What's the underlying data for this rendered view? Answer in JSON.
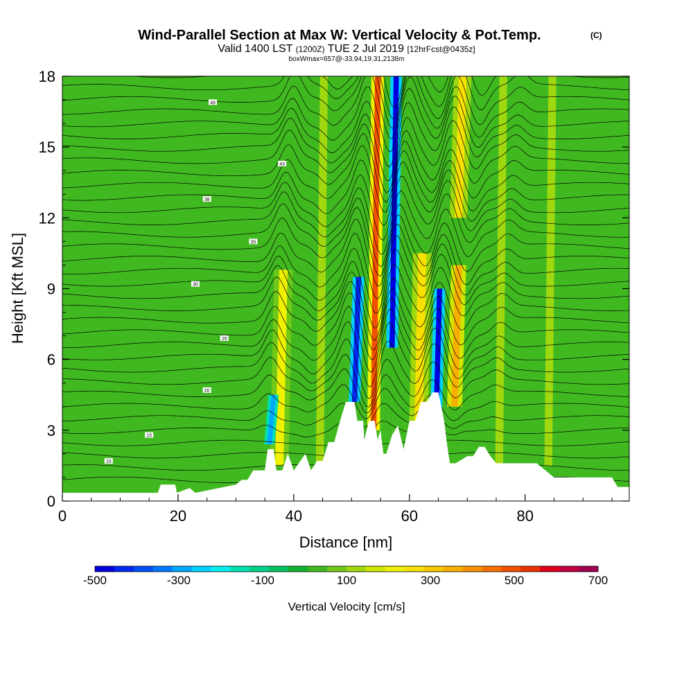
{
  "header": {
    "title": "Wind-Parallel Section at Max W: Vertical Velocity & Pot.Temp.",
    "copyright": "(C)",
    "valid_prefix": "Valid 1400 LST",
    "utc": "(1200Z)",
    "valid_date": "TUE 2 Jul 2019",
    "forecast": "[12hrFcst@0435z]",
    "box_info": "boxWmax=657@-33.94,19.31,2138m"
  },
  "chart_data": {
    "type": "heatmap",
    "xlabel": "Distance [nm]",
    "ylabel": "Height [Kft MSL]",
    "xlim": [
      0,
      98
    ],
    "ylim": [
      0,
      18
    ],
    "x_ticks": [
      0,
      20,
      40,
      60,
      80
    ],
    "y_ticks": [
      0,
      3,
      6,
      9,
      12,
      15,
      18
    ],
    "grid": false,
    "colorbar": {
      "label": "Vertical Velocity [cm/s]",
      "min": -500,
      "max": 700,
      "step": 50,
      "tick_labels": [
        -500,
        -300,
        -100,
        100,
        300,
        500,
        700
      ],
      "colors": [
        "#0000e0",
        "#0028f0",
        "#0050f5",
        "#0078ff",
        "#00a8ff",
        "#00d0ff",
        "#00f0f0",
        "#00e0b0",
        "#00d088",
        "#00c060",
        "#10b030",
        "#40b820",
        "#70c818",
        "#a0d810",
        "#d0e800",
        "#f0f000",
        "#f8e000",
        "#f8c800",
        "#f8b000",
        "#f89000",
        "#f87000",
        "#f05000",
        "#e83000",
        "#e00018",
        "#c00040",
        "#a00050"
      ]
    },
    "velocity_bands": [
      {
        "x": 37.5,
        "width": 1.6,
        "value": 250,
        "zmin": 1.5,
        "zmax": 9.8
      },
      {
        "x": 35.8,
        "width": 0.9,
        "value": -280,
        "zmin": 2.4,
        "zmax": 4.5
      },
      {
        "x": 44.5,
        "width": 1.5,
        "value": 170,
        "zmin": 1.5,
        "zmax": 18
      },
      {
        "x": 50.5,
        "width": 1.0,
        "value": -420,
        "zmin": 4.2,
        "zmax": 9.5
      },
      {
        "x": 53.8,
        "width": 1.1,
        "value": 550,
        "zmin": 3.0,
        "zmax": 18
      },
      {
        "x": 57.0,
        "width": 1.0,
        "value": -480,
        "zmin": 6.5,
        "zmax": 18
      },
      {
        "x": 61.5,
        "width": 1.6,
        "value": 300,
        "zmin": 2.5,
        "zmax": 10.5
      },
      {
        "x": 64.5,
        "width": 1.0,
        "value": -470,
        "zmin": 2.5,
        "zmax": 9.0
      },
      {
        "x": 67.8,
        "width": 1.3,
        "value": 420,
        "zmin": 4.0,
        "zmax": 10.0
      },
      {
        "x": 68.5,
        "width": 1.5,
        "value": 300,
        "zmin": 12.0,
        "zmax": 18
      },
      {
        "x": 75.5,
        "width": 1.5,
        "value": 160,
        "zmin": 1.5,
        "zmax": 18
      },
      {
        "x": 84.0,
        "width": 1.5,
        "value": 170,
        "zmin": 1.5,
        "zmax": 18
      }
    ],
    "terrain": [
      [
        0,
        0.35
      ],
      [
        16.5,
        0.35
      ],
      [
        17,
        0.7
      ],
      [
        19.5,
        0.7
      ],
      [
        19.8,
        0.35
      ],
      [
        22,
        0.55
      ],
      [
        23,
        0.35
      ],
      [
        30,
        0.7
      ],
      [
        31,
        0.9
      ],
      [
        32,
        0.9
      ],
      [
        33,
        1.3
      ],
      [
        34,
        1.3
      ],
      [
        35,
        1.3
      ],
      [
        35.5,
        2.2
      ],
      [
        36.5,
        2.2
      ],
      [
        37,
        1.3
      ],
      [
        38,
        1.3
      ],
      [
        39,
        2
      ],
      [
        40,
        1.3
      ],
      [
        42,
        2
      ],
      [
        43,
        1.3
      ],
      [
        44,
        1.7
      ],
      [
        45,
        1.7
      ],
      [
        46,
        2.5
      ],
      [
        47,
        2.5
      ],
      [
        48,
        3.4
      ],
      [
        49,
        4.2
      ],
      [
        50.5,
        4.2
      ],
      [
        51,
        3.4
      ],
      [
        52,
        3.4
      ],
      [
        52.2,
        2.6
      ],
      [
        53,
        3.4
      ],
      [
        54,
        3.4
      ],
      [
        54.5,
        2.6
      ],
      [
        55,
        3.0
      ],
      [
        55.5,
        2.0
      ],
      [
        56,
        2.0
      ],
      [
        57,
        2.8
      ],
      [
        58,
        3.2
      ],
      [
        59,
        2.2
      ],
      [
        60,
        3.4
      ],
      [
        61,
        3.4
      ],
      [
        62,
        4.2
      ],
      [
        63,
        4.2
      ],
      [
        64,
        4.6
      ],
      [
        65,
        4.6
      ],
      [
        66,
        3.4
      ],
      [
        66.5,
        2.4
      ],
      [
        67,
        1.6
      ],
      [
        68,
        1.6
      ],
      [
        70,
        1.9
      ],
      [
        71,
        1.9
      ],
      [
        72,
        2.3
      ],
      [
        73,
        2.3
      ],
      [
        74,
        1.9
      ],
      [
        75,
        1.6
      ],
      [
        82,
        1.6
      ],
      [
        85,
        1.0
      ],
      [
        95,
        1.0
      ],
      [
        96,
        0.6
      ],
      [
        98,
        0.6
      ]
    ],
    "contour_labels": [
      "48",
      "43",
      "38",
      "35",
      "30",
      "25",
      "20",
      "15",
      "10"
    ]
  }
}
